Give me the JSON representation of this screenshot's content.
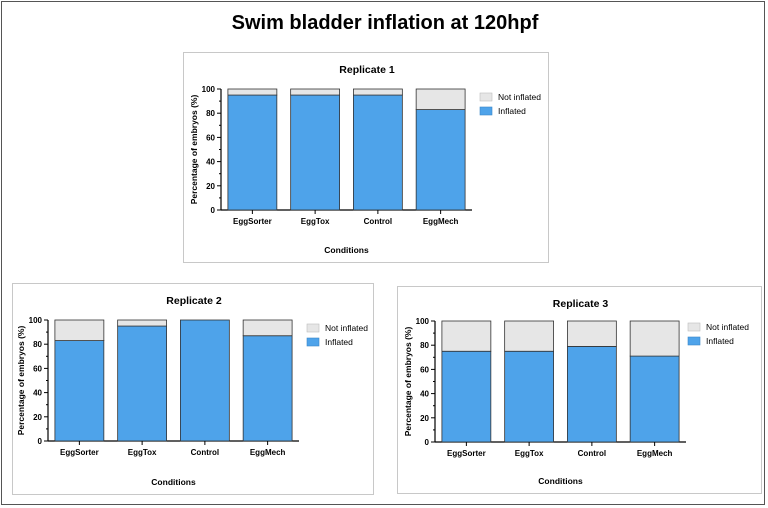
{
  "page": {
    "title": "Swim bladder inflation at 120hpf"
  },
  "colors": {
    "inflated": "#4ea3ea",
    "not_inflated": "#e6e6e6",
    "bar_border": "#333333",
    "axis": "#000000"
  },
  "chart_data": [
    {
      "type": "bar",
      "stacked": true,
      "title": "Replicate 1",
      "xlabel": "Conditions",
      "ylabel": "Percentage of embryos (%)",
      "ylim": [
        0,
        100
      ],
      "yticks": [
        0,
        20,
        40,
        60,
        80,
        100
      ],
      "categories": [
        "EggSorter",
        "EggTox",
        "Control",
        "EggMech"
      ],
      "series": [
        {
          "name": "Inflated",
          "values": [
            95,
            95,
            95,
            83
          ]
        },
        {
          "name": "Not inflated",
          "values": [
            5,
            5,
            5,
            17
          ]
        }
      ],
      "legend": "top-right"
    },
    {
      "type": "bar",
      "stacked": true,
      "title": "Replicate 2",
      "xlabel": "Conditions",
      "ylabel": "Percentage of embryos (%)",
      "ylim": [
        0,
        100
      ],
      "yticks": [
        0,
        20,
        40,
        60,
        80,
        100
      ],
      "categories": [
        "EggSorter",
        "EggTox",
        "Control",
        "EggMech"
      ],
      "series": [
        {
          "name": "Inflated",
          "values": [
            83,
            95,
            100,
            87
          ]
        },
        {
          "name": "Not inflated",
          "values": [
            17,
            5,
            0,
            13
          ]
        }
      ],
      "legend": "top-right"
    },
    {
      "type": "bar",
      "stacked": true,
      "title": "Replicate 3",
      "xlabel": "Conditions",
      "ylabel": "Percentage of embryos (%)",
      "ylim": [
        0,
        100
      ],
      "yticks": [
        0,
        20,
        40,
        60,
        80,
        100
      ],
      "categories": [
        "EggSorter",
        "EggTox",
        "Control",
        "EggMech"
      ],
      "series": [
        {
          "name": "Inflated",
          "values": [
            75,
            75,
            79,
            71
          ]
        },
        {
          "name": "Not inflated",
          "values": [
            25,
            25,
            21,
            29
          ]
        }
      ],
      "legend": "top-right"
    }
  ]
}
